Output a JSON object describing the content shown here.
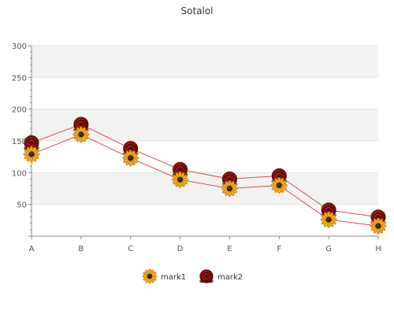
{
  "chart_data": {
    "type": "line",
    "title": "Sotalol",
    "categories": [
      "A",
      "B",
      "C",
      "D",
      "E",
      "F",
      "G",
      "H"
    ],
    "series": [
      {
        "name": "mark1",
        "values": [
          129,
          160,
          123,
          89,
          75,
          80,
          26,
          16
        ],
        "color": "#d05050",
        "marker": "sunflower-icon"
      },
      {
        "name": "mark2",
        "values": [
          147,
          176,
          138,
          105,
          90,
          95,
          41,
          30
        ],
        "color": "#d05050",
        "marker": "rose-icon"
      }
    ],
    "yticks": [
      "50",
      "100",
      "150",
      "200",
      "250",
      "300"
    ],
    "ylim": [
      0,
      300
    ],
    "grid": true,
    "legend": "bottom"
  }
}
